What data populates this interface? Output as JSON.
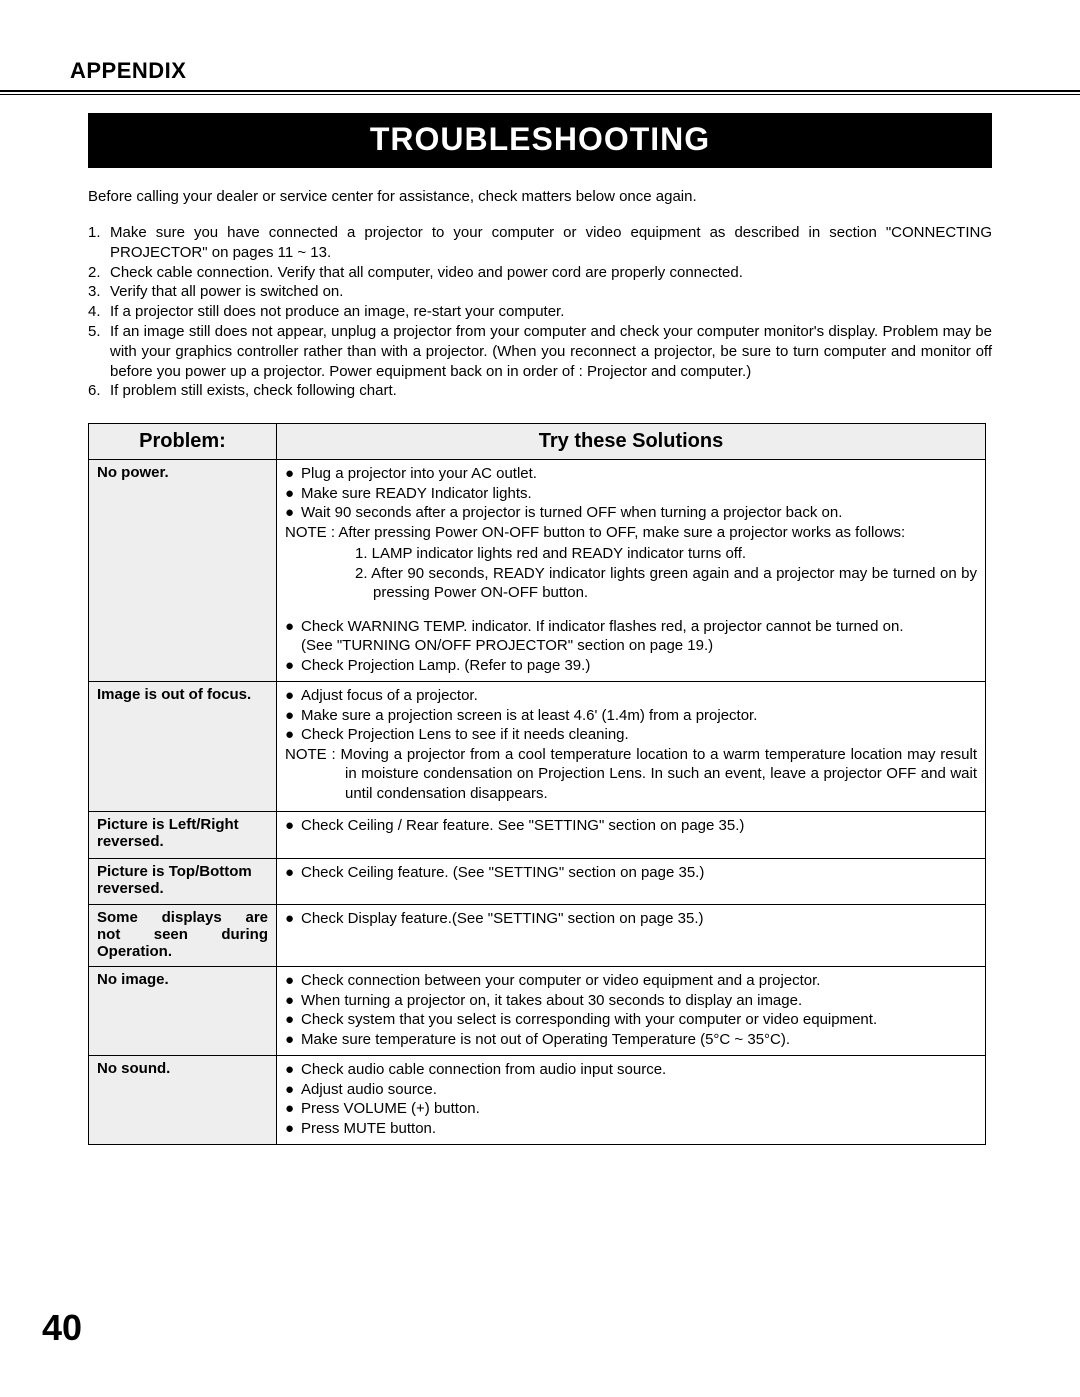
{
  "header": "APPENDIX",
  "title": "TROUBLESHOOTING",
  "intro": "Before calling your dealer or service center for assistance, check matters below once again.",
  "steps": [
    "Make sure you have connected a projector to your computer or video equipment as described in section \"CONNECTING PROJECTOR\"  on pages 11 ~ 13.",
    "Check cable connection.  Verify that all computer, video and power cord are properly connected.",
    "Verify that all power is switched on.",
    "If a projector still does not produce an image, re-start your computer.",
    "If an image still does not appear, unplug a projector from your computer and check your computer monitor's display. Problem may be with your graphics controller rather than with a projector.  (When you reconnect a projector, be sure to turn computer and monitor off before you power up a projector.  Power equipment back on in order of : Projector and computer.)",
    "If problem still exists, check following chart."
  ],
  "table": {
    "col_problem": "Problem:",
    "col_solutions": "Try these Solutions",
    "rows": [
      {
        "problem": "No power.",
        "bullets_a": [
          "Plug a projector into your AC outlet.",
          "Make sure READY Indicator lights.",
          "Wait 90 seconds after a projector is turned OFF when turning a projector back on."
        ],
        "note": "NOTE : After pressing Power ON-OFF button to OFF, make sure a projector works as follows:",
        "sub_ol": [
          "LAMP indicator lights red and READY indicator turns off.",
          "After 90 seconds, READY indicator lights green again and a projector may be turned on by pressing Power ON-OFF button."
        ],
        "bullets_b": [
          "Check WARNING TEMP. indicator.  If indicator flashes red, a projector cannot be turned on."
        ],
        "see": "(See \"TURNING ON/OFF PROJECTOR\" section on page 19.)",
        "bullets_c": [
          "Check Projection Lamp.  (Refer to page 39.)"
        ]
      },
      {
        "problem": "Image is out of focus.",
        "bullets_a": [
          "Adjust focus of a projector.",
          "Make sure a projection screen is at least 4.6' (1.4m) from a projector.",
          "Check Projection Lens to see if it needs cleaning."
        ],
        "note": "NOTE : Moving a projector from a cool temperature location to a warm temperature location may result in moisture condensation on Projection Lens.  In such an event, leave a projector OFF and wait until condensation disappears."
      },
      {
        "problem": "Picture is Left/Right reversed.",
        "bullets_a": [
          "Check Ceiling / Rear feature.  See \"SETTING\" section on page 35.)"
        ]
      },
      {
        "problem": "Picture is Top/Bottom reversed.",
        "bullets_a": [
          "Check Ceiling feature.  (See \"SETTING\" section on page 35.)"
        ]
      },
      {
        "problem_lines": [
          "Some displays are",
          "not seen during"
        ],
        "problem_last": "Operation.",
        "bullets_a": [
          "Check Display feature.(See \"SETTING\" section on page 35.)"
        ]
      },
      {
        "problem": "No image.",
        "bullets_a": [
          "Check connection between your computer or video equipment and a projector.",
          "When turning a projector on, it takes about 30 seconds to display an image.",
          "Check system that you select is corresponding with your computer or video equipment.",
          "Make sure temperature is not out of Operating Temperature (5°C ~ 35°C)."
        ]
      },
      {
        "problem": "No sound.",
        "bullets_a": [
          "Check audio cable connection from audio input source.",
          "Adjust audio source.",
          "Press VOLUME (+) button.",
          "Press MUTE button."
        ]
      }
    ]
  },
  "page_number": "40"
}
